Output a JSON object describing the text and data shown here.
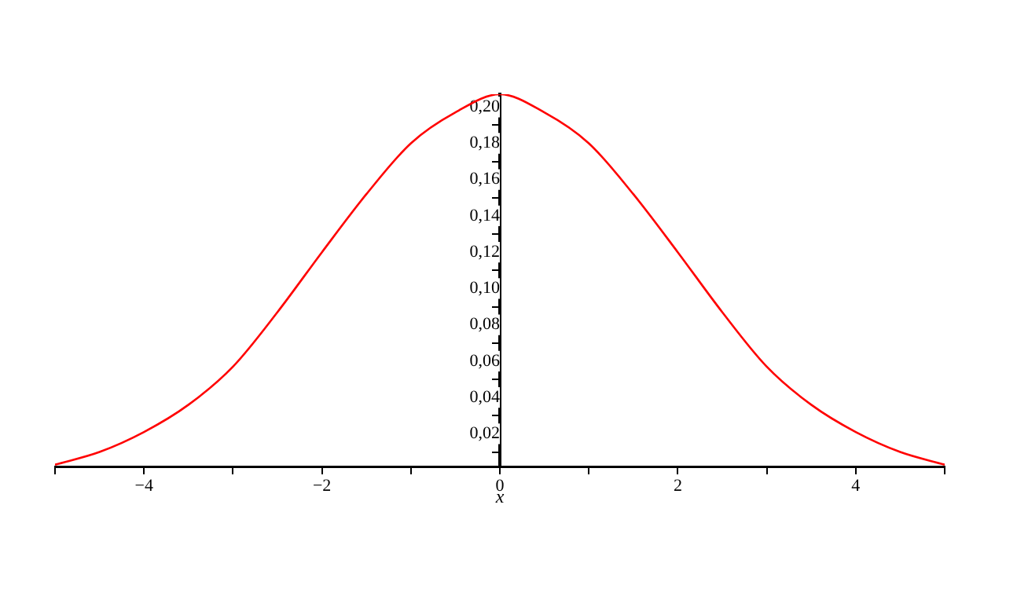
{
  "chart_data": {
    "type": "line",
    "xlabel": "x",
    "x": [
      -5,
      -4.5,
      -4,
      -3.5,
      -3,
      -2.5,
      -2,
      -1.5,
      -1,
      -0.5,
      0,
      0.5,
      1,
      1.5,
      2,
      2.5,
      3,
      3.5,
      4,
      4.5,
      5
    ],
    "values": [
      0.003,
      0.01,
      0.021,
      0.036,
      0.057,
      0.087,
      0.12,
      0.152,
      0.18,
      0.197,
      0.207,
      0.197,
      0.18,
      0.152,
      0.12,
      0.087,
      0.057,
      0.036,
      0.021,
      0.01,
      0.003
    ],
    "color": "#ff0000",
    "marker": "none",
    "grid": false,
    "legend": false,
    "xlim": [
      -5,
      5
    ],
    "ylim": [
      0.002,
      0.207
    ],
    "xticks": [
      {
        "value": -5,
        "label": null
      },
      {
        "value": -4,
        "label": "−4"
      },
      {
        "value": -3,
        "label": null
      },
      {
        "value": -2,
        "label": "−2"
      },
      {
        "value": -1,
        "label": null
      },
      0,
      {
        "value": 1,
        "label": null
      },
      2,
      {
        "value": 3,
        "label": null
      },
      4,
      {
        "value": 5,
        "label": null
      }
    ],
    "yticks": [
      {
        "value": 0.01,
        "label": null
      },
      {
        "value": 0.02,
        "label": "0,02"
      },
      {
        "value": 0.03,
        "label": null
      },
      {
        "value": 0.04,
        "label": "0,04"
      },
      {
        "value": 0.05,
        "label": null
      },
      {
        "value": 0.06,
        "label": "0,06"
      },
      {
        "value": 0.07,
        "label": null
      },
      {
        "value": 0.08,
        "label": "0,08"
      },
      {
        "value": 0.09,
        "label": null
      },
      {
        "value": 0.1,
        "label": "0,10"
      },
      {
        "value": 0.11,
        "label": null
      },
      {
        "value": 0.12,
        "label": "0,12"
      },
      {
        "value": 0.13,
        "label": null
      },
      {
        "value": 0.14,
        "label": "0,14"
      },
      {
        "value": 0.15,
        "label": null
      },
      {
        "value": 0.16,
        "label": "0,16"
      },
      {
        "value": 0.17,
        "label": null
      },
      {
        "value": 0.18,
        "label": "0,18"
      },
      {
        "value": 0.19,
        "label": null
      },
      {
        "value": 0.2,
        "label": "0,20"
      }
    ]
  }
}
